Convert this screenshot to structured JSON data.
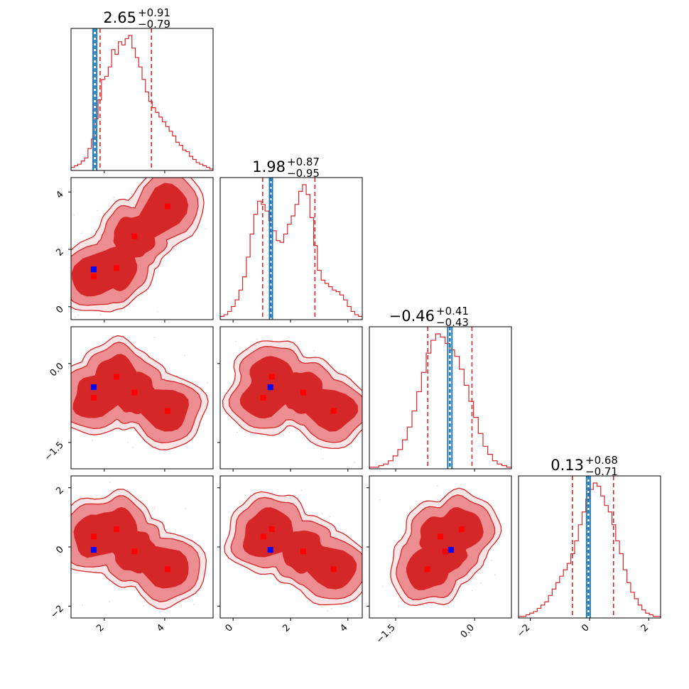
{
  "chart_data": {
    "type": "corner",
    "colors": {
      "contour": "#d62728",
      "contour_fill_dark": "#d62728",
      "contour_fill_light": "#ec8d91",
      "truth_line": "#1f77b4",
      "blue_marker": "#0000ff",
      "red_marker": "#ff0000"
    },
    "parameters": [
      {
        "title_median": "2.65",
        "title_plus": "+0.91",
        "title_minus": "−0.79",
        "range": [
          0.9,
          5.6
        ],
        "ticks": [
          2,
          4
        ],
        "tick_labels": [
          "2",
          "4"
        ],
        "quantiles": [
          1.86,
          2.65,
          3.56
        ],
        "truth": [
          1.63,
          1.69,
          1.75
        ],
        "hist": {
          "min": 0.9,
          "max": 5.6,
          "counts": [
            2,
            3,
            4,
            6,
            8,
            14,
            20,
            33,
            45,
            58,
            60,
            66,
            77,
            74,
            82,
            80,
            84,
            86,
            78,
            72,
            66,
            58,
            50,
            44,
            40,
            37,
            34,
            31,
            28,
            25,
            22,
            18,
            16,
            13,
            12,
            9,
            7,
            5,
            4,
            3,
            2,
            1
          ]
        }
      },
      {
        "title_median": "1.98",
        "title_plus": "+0.87",
        "title_minus": "−0.95",
        "range": [
          -0.45,
          4.5
        ],
        "ticks": [
          0,
          2,
          4
        ],
        "tick_labels": [
          "0",
          "2",
          "4"
        ],
        "quantiles": [
          1.03,
          1.98,
          2.85
        ],
        "truth": [
          1.27,
          1.31,
          1.37
        ],
        "hist": {
          "min": -0.45,
          "max": 4.5,
          "counts": [
            2,
            3,
            5,
            8,
            12,
            18,
            26,
            38,
            52,
            64,
            72,
            70,
            66,
            60,
            54,
            48,
            47,
            52,
            58,
            63,
            70,
            78,
            82,
            76,
            62,
            45,
            30,
            24,
            22,
            20,
            18,
            17,
            15,
            12,
            8,
            5,
            3,
            2
          ]
        }
      },
      {
        "title_median": "−0.46",
        "title_plus": "+0.41",
        "title_minus": "−0.43",
        "range": [
          -2.0,
          0.7
        ],
        "ticks": [
          -1.5,
          0.0
        ],
        "tick_labels": [
          "−1.5",
          "0.0"
        ],
        "quantiles": [
          -0.89,
          -0.46,
          -0.05
        ],
        "truth": [
          -0.51,
          -0.47,
          -0.43
        ],
        "hist": {
          "min": -2.0,
          "max": 0.7,
          "counts": [
            1,
            1,
            2,
            3,
            5,
            8,
            12,
            18,
            26,
            36,
            48,
            60,
            72,
            80,
            84,
            82,
            78,
            74,
            70,
            62,
            52,
            42,
            32,
            22,
            14,
            9,
            5,
            3,
            2,
            1
          ]
        }
      },
      {
        "title_median": "0.13",
        "title_plus": "+0.68",
        "title_minus": "−0.71",
        "range": [
          -2.4,
          2.4
        ],
        "ticks": [
          -2,
          0,
          2
        ],
        "tick_labels": [
          "−2",
          "0",
          "2"
        ],
        "quantiles": [
          -0.58,
          0.13,
          0.81
        ],
        "truth": [
          -0.1,
          -0.04,
          0.02
        ],
        "hist": {
          "min": -2.4,
          "max": 2.4,
          "counts": [
            1,
            1,
            2,
            3,
            4,
            6,
            8,
            10,
            14,
            18,
            22,
            26,
            30,
            34,
            40,
            48,
            58,
            66,
            74,
            80,
            84,
            82,
            76,
            70,
            66,
            58,
            48,
            40,
            30,
            22,
            16,
            12,
            8,
            5,
            3,
            2,
            1,
            1
          ]
        }
      }
    ],
    "markers_2d": {
      "red_points": [
        [
          1.65,
          1.05,
          -0.65,
          0.35
        ],
        [
          2.4,
          1.35,
          -0.25,
          0.6
        ],
        [
          3.0,
          2.45,
          -0.55,
          -0.15
        ],
        [
          4.1,
          3.5,
          -0.9,
          -0.75
        ]
      ],
      "blue_point": [
        1.65,
        1.3,
        -0.45,
        -0.1
      ]
    },
    "y_ticks_rows": {
      "1": {
        "ticks": [
          0,
          2,
          4
        ],
        "tick_labels": [
          "0",
          "2",
          "4"
        ]
      },
      "2": {
        "ticks": [
          -1.5,
          0.0
        ],
        "tick_labels": [
          "−1.5",
          "0.0"
        ]
      },
      "3": {
        "ticks": [
          -2,
          0,
          2
        ],
        "tick_labels": [
          "−2",
          "0",
          "2"
        ]
      }
    }
  }
}
